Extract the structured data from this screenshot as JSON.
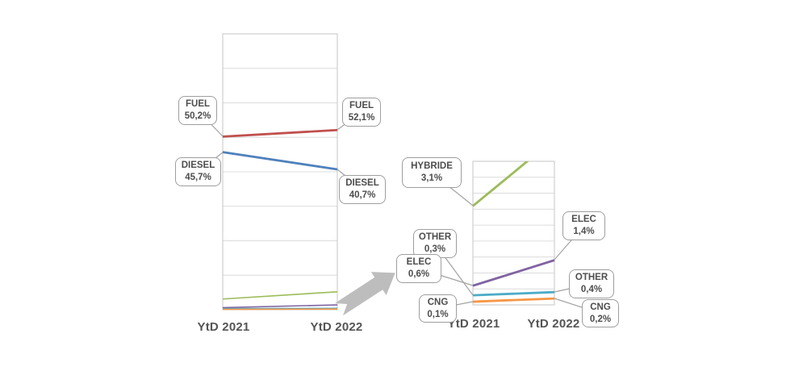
{
  "figure": {
    "background": "#ffffff"
  },
  "zoom_arrow": {
    "color": "#bdbdbd"
  },
  "chart_data": [
    {
      "type": "line",
      "name": "powertrain-share-main",
      "title": "",
      "x_categories": [
        "YtD 2021",
        "YtD 2022"
      ],
      "ylim": [
        0,
        80
      ],
      "grid_step": 10,
      "grid": true,
      "legend_position": "none",
      "series": [
        {
          "name": "FUEL",
          "values": [
            50.2,
            52.1
          ],
          "color": "#c0504d"
        },
        {
          "name": "DIESEL",
          "values": [
            45.7,
            40.7
          ],
          "color": "#4f81bd"
        },
        {
          "name": "HYBRIDE",
          "values": [
            3.1,
            5.2
          ],
          "color": "#9bbb59"
        },
        {
          "name": "ELEC",
          "values": [
            0.6,
            1.4
          ],
          "color": "#8064a2"
        },
        {
          "name": "OTHER",
          "values": [
            0.3,
            0.4
          ],
          "color": "#4bacc6"
        },
        {
          "name": "CNG",
          "values": [
            0.1,
            0.2
          ],
          "color": "#f79646"
        }
      ]
    },
    {
      "type": "line",
      "name": "powertrain-share-zoom",
      "title": "",
      "x_categories": [
        "YtD 2021",
        "YtD 2022"
      ],
      "ylim": [
        0,
        4.5
      ],
      "grid_step": 0.5,
      "grid": true,
      "legend_position": "none",
      "series": [
        {
          "name": "HYBRIDE",
          "values": [
            3.1,
            5.2
          ],
          "color": "#9bbb59"
        },
        {
          "name": "ELEC",
          "values": [
            0.6,
            1.4
          ],
          "color": "#8064a2"
        },
        {
          "name": "OTHER",
          "values": [
            0.3,
            0.4
          ],
          "color": "#4bacc6"
        },
        {
          "name": "CNG",
          "values": [
            0.1,
            0.2
          ],
          "color": "#f79646"
        }
      ]
    }
  ],
  "callouts": [
    {
      "id": "fuel-2021",
      "chart": 0,
      "lines": [
        "FUEL",
        "50,2%"
      ]
    },
    {
      "id": "diesel-2021",
      "chart": 0,
      "lines": [
        "DIESEL",
        "45,7%"
      ]
    },
    {
      "id": "fuel-2022",
      "chart": 0,
      "lines": [
        "FUEL",
        "52,1%"
      ]
    },
    {
      "id": "diesel-2022",
      "chart": 0,
      "lines": [
        "DIESEL",
        "40,7%"
      ]
    },
    {
      "id": "hybride-2021",
      "chart": 1,
      "lines": [
        "HYBRIDE",
        "3,1%"
      ]
    },
    {
      "id": "other-2021",
      "chart": 1,
      "lines": [
        "OTHER",
        "0,3%"
      ]
    },
    {
      "id": "elec-2021",
      "chart": 1,
      "lines": [
        "ELEC",
        "0,6%"
      ]
    },
    {
      "id": "cng-2021",
      "chart": 1,
      "lines": [
        "CNG",
        "0,1%"
      ]
    },
    {
      "id": "elec-2022",
      "chart": 1,
      "lines": [
        "ELEC",
        "1,4%"
      ]
    },
    {
      "id": "other-2022",
      "chart": 1,
      "lines": [
        "OTHER",
        "0,4%"
      ]
    },
    {
      "id": "cng-2022",
      "chart": 1,
      "lines": [
        "CNG",
        "0,2%"
      ]
    }
  ]
}
